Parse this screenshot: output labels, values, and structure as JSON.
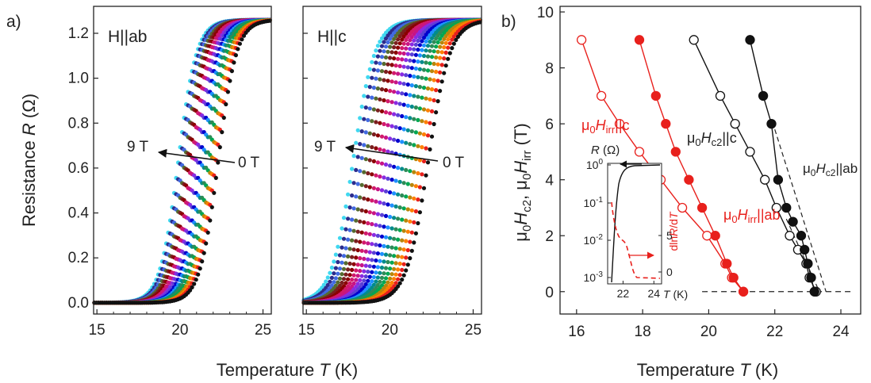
{
  "chart_data": [
    {
      "type": "scatter",
      "panel_label": "a)",
      "annotation": "H||ab",
      "xlabel": "Temperature T (K)",
      "ylabel": "Resistance R (Ω)",
      "xlim": [
        14.8,
        25.5
      ],
      "ylim": [
        -0.05,
        1.32
      ],
      "xticks": [
        "15",
        "20",
        "25"
      ],
      "yticks": [
        "0.0",
        "0.2",
        "0.4",
        "0.6",
        "0.8",
        "1.0",
        "1.2"
      ],
      "field_arrow": {
        "start_label": "0 T",
        "end_label": "9 T"
      },
      "rn": 1.26,
      "width_K": 0.55,
      "fields_T": [
        0,
        0.5,
        1,
        1.5,
        2,
        2.5,
        3,
        3.5,
        4,
        4.5,
        5,
        5.5,
        6,
        6.5,
        7,
        7.5,
        8,
        8.5,
        9
      ],
      "tc_K": [
        22.3,
        22.16,
        22.03,
        21.9,
        21.76,
        21.62,
        21.5,
        21.36,
        21.22,
        21.1,
        20.96,
        20.83,
        20.7,
        20.56,
        20.43,
        20.3,
        20.16,
        20.03,
        19.9
      ]
    },
    {
      "type": "scatter",
      "annotation": "H||c",
      "xlabel": "Temperature T (K)",
      "xlim": [
        14.8,
        25.5
      ],
      "ylim": [
        -0.05,
        1.32
      ],
      "xticks": [
        "15",
        "20",
        "25"
      ],
      "field_arrow": {
        "start_label": "0 T",
        "end_label": "9 T"
      },
      "rn": 1.26,
      "width_K": 0.65,
      "fields_T": [
        0,
        0.5,
        1,
        1.5,
        2,
        2.5,
        3,
        3.5,
        4,
        4.5,
        5,
        5.5,
        6,
        6.5,
        7,
        7.5,
        8,
        8.5,
        9
      ],
      "tc_K": [
        22.3,
        22.05,
        21.8,
        21.55,
        21.3,
        21.05,
        20.8,
        20.55,
        20.3,
        20.05,
        19.8,
        19.55,
        19.3,
        19.05,
        18.8,
        18.55,
        18.3,
        18.05,
        17.8
      ]
    },
    {
      "type": "line",
      "panel_label": "b)",
      "xlabel": "Temperature T (K)",
      "ylabel": "μ0Hc2, μ0Hirr (T)",
      "xlim": [
        15.5,
        24.6
      ],
      "ylim": [
        -0.8,
        10.2
      ],
      "xticks": [
        "16",
        "18",
        "20",
        "22",
        "24"
      ],
      "yticks": [
        "0",
        "2",
        "4",
        "6",
        "8",
        "10"
      ],
      "series": [
        {
          "name": "μ0Hirr||c",
          "color": "#e8201c",
          "marker": "open",
          "x": [
            21.05,
            20.7,
            20.5,
            19.95,
            19.2,
            18.55,
            17.9,
            17.3,
            16.75,
            16.15
          ],
          "y": [
            0,
            0.5,
            1,
            2,
            3,
            4,
            5,
            6,
            7,
            9
          ]
        },
        {
          "name": "μ0Hirr||ab",
          "color": "#e8201c",
          "marker": "filled",
          "x": [
            21.05,
            20.75,
            20.55,
            20.2,
            19.8,
            19.4,
            19.0,
            18.7,
            18.4,
            17.9
          ],
          "y": [
            0,
            0.5,
            1,
            2,
            3,
            4,
            5,
            6,
            7,
            9
          ]
        },
        {
          "name": "μ0Hc2||c",
          "color": "#111111",
          "marker": "open",
          "x": [
            23.25,
            23.05,
            22.95,
            22.7,
            22.45,
            22.05,
            21.7,
            21.25,
            20.8,
            20.35,
            19.55
          ],
          "y": [
            0,
            0.5,
            1,
            1.5,
            2,
            3,
            4,
            5,
            6,
            7,
            9
          ]
        },
        {
          "name": "μ0Hc2||ab",
          "color": "#111111",
          "marker": "filled",
          "x": [
            23.2,
            23.1,
            23.0,
            22.9,
            22.8,
            22.55,
            22.35,
            22.1,
            21.9,
            21.65,
            21.25
          ],
          "y": [
            0,
            0.5,
            1,
            1.5,
            2,
            2.5,
            3,
            4,
            6,
            7,
            9
          ]
        }
      ],
      "labels": {
        "irr_c": {
          "pre": "μ",
          "s1": "0",
          "mid": "H",
          "s2": "irr",
          "post": "||c"
        },
        "irr_ab": {
          "pre": "μ",
          "s1": "0",
          "mid": "H",
          "s2": "irr",
          "post": "||ab"
        },
        "c2_c": {
          "pre": "μ",
          "s1": "0",
          "mid": "H",
          "s2": "c2",
          "post": "||c"
        },
        "c2_ab": {
          "pre": "μ",
          "s1": "0",
          "mid": "H",
          "s2": "c2",
          "post": "||ab"
        }
      },
      "inset": {
        "xticks": [
          "22",
          "24"
        ],
        "xlabel": "T (K)",
        "ylabel_left": "R (Ω)",
        "yticks_left_base": "10",
        "yticks_left_exp": [
          "0",
          "-1",
          "-2",
          "-3"
        ],
        "ylabel_right": "dlnR/dT",
        "yticks_right": [
          "0",
          "5"
        ]
      }
    }
  ]
}
